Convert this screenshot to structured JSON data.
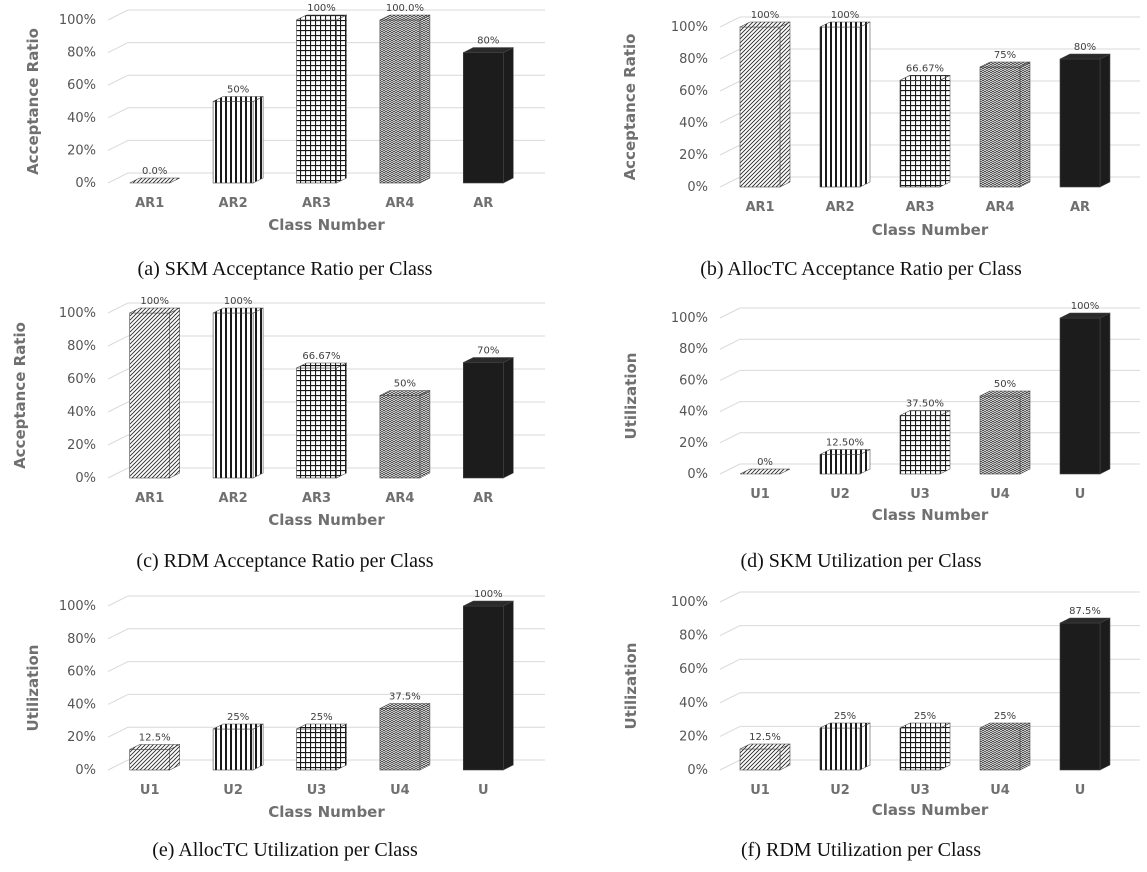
{
  "chart_data": [
    {
      "type": "bar",
      "caption": "(a) SKM Acceptance Ratio per Class",
      "xlabel": "Class Number",
      "ylabel": "Acceptance Ratio",
      "ylim": [
        0,
        100
      ],
      "yticks": [
        "0%",
        "20%",
        "40%",
        "60%",
        "80%",
        "100%"
      ],
      "categories": [
        "AR1",
        "AR2",
        "AR3",
        "AR4",
        "AR"
      ],
      "values": [
        0,
        50,
        100,
        100,
        80
      ],
      "data_labels": [
        "0.0%",
        "50%",
        "100%",
        "100.0%",
        "80%"
      ]
    },
    {
      "type": "bar",
      "caption": "(b) AllocTC Acceptance Ratio per Class",
      "xlabel": "Class Number",
      "ylabel": "Acceptance Ratio",
      "ylim": [
        0,
        100
      ],
      "yticks": [
        "0%",
        "20%",
        "40%",
        "60%",
        "80%",
        "100%"
      ],
      "categories": [
        "AR1",
        "AR2",
        "AR3",
        "AR4",
        "AR"
      ],
      "values": [
        100,
        100,
        66.67,
        75,
        80
      ],
      "data_labels": [
        "100%",
        "100%",
        "66.67%",
        "75%",
        "80%"
      ]
    },
    {
      "type": "bar",
      "caption": "(c) RDM Acceptance Ratio per Class",
      "xlabel": "Class Number",
      "ylabel": "Acceptance Ratio",
      "ylim": [
        0,
        100
      ],
      "yticks": [
        "0%",
        "20%",
        "40%",
        "60%",
        "80%",
        "100%"
      ],
      "categories": [
        "AR1",
        "AR2",
        "AR3",
        "AR4",
        "AR"
      ],
      "values": [
        100,
        100,
        66.67,
        50,
        70
      ],
      "data_labels": [
        "100%",
        "100%",
        "66.67%",
        "50%",
        "70%"
      ]
    },
    {
      "type": "bar",
      "caption": "(d) SKM Utilization per Class",
      "xlabel": "Class Number",
      "ylabel": "Utilization",
      "ylim": [
        0,
        100
      ],
      "yticks": [
        "0%",
        "20%",
        "40%",
        "60%",
        "80%",
        "100%"
      ],
      "categories": [
        "U1",
        "U2",
        "U3",
        "U4",
        "U"
      ],
      "values": [
        0,
        12.5,
        37.5,
        50,
        100
      ],
      "data_labels": [
        "0%",
        "12.50%",
        "37.50%",
        "50%",
        "100%"
      ]
    },
    {
      "type": "bar",
      "caption": "(e) AllocTC Utilization per Class",
      "xlabel": "Class Number",
      "ylabel": "Utilization",
      "ylim": [
        0,
        100
      ],
      "yticks": [
        "0%",
        "20%",
        "40%",
        "60%",
        "80%",
        "100%"
      ],
      "categories": [
        "U1",
        "U2",
        "U3",
        "U4",
        "U"
      ],
      "values": [
        12.5,
        25,
        25,
        37.5,
        100
      ],
      "data_labels": [
        "12.5%",
        "25%",
        "25%",
        "37.5%",
        "100%"
      ]
    },
    {
      "type": "bar",
      "caption": "(f) RDM Utilization per Class",
      "xlabel": "Class Number",
      "ylabel": "Utilization",
      "ylim": [
        0,
        100
      ],
      "yticks": [
        "0%",
        "20%",
        "40%",
        "60%",
        "80%",
        "100%"
      ],
      "categories": [
        "U1",
        "U2",
        "U3",
        "U4",
        "U"
      ],
      "values": [
        12.5,
        25,
        25,
        25,
        87.5
      ],
      "data_labels": [
        "12.5%",
        "25%",
        "25%",
        "25%",
        "87.5%"
      ]
    }
  ]
}
